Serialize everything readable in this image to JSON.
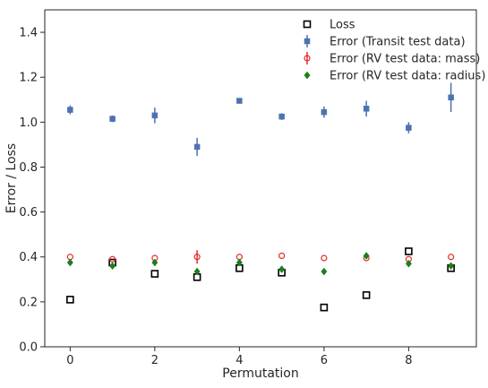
{
  "chart_data": {
    "type": "scatter",
    "xlabel": "Permutation",
    "ylabel": "Error / Loss",
    "xlim": [
      -0.6,
      9.6
    ],
    "ylim": [
      0.0,
      1.5
    ],
    "x_ticks": [
      0,
      2,
      4,
      6,
      8
    ],
    "y_ticks": [
      0.0,
      0.2,
      0.4,
      0.6,
      0.8,
      1.0,
      1.2,
      1.4
    ],
    "x_tick_labels": [
      "0",
      "2",
      "4",
      "6",
      "8"
    ],
    "y_tick_labels": [
      "0.0",
      "0.2",
      "0.4",
      "0.6",
      "0.8",
      "1.0",
      "1.2",
      "1.4"
    ],
    "grid": false,
    "legend_position": "top-right",
    "series": [
      {
        "name": "Loss",
        "marker": "open-square",
        "color": "#000000",
        "x": [
          0,
          1,
          2,
          3,
          4,
          5,
          6,
          7,
          8,
          9
        ],
        "y": [
          0.21,
          0.375,
          0.325,
          0.31,
          0.35,
          0.33,
          0.175,
          0.23,
          0.425,
          0.35
        ],
        "err": [
          0,
          0,
          0,
          0,
          0,
          0,
          0,
          0,
          0,
          0
        ]
      },
      {
        "name": "Error (Transit test data)",
        "marker": "filled-square",
        "color": "#4c72b0",
        "x": [
          0,
          1,
          2,
          3,
          4,
          5,
          6,
          7,
          8,
          9
        ],
        "y": [
          1.055,
          1.015,
          1.03,
          0.89,
          1.095,
          1.025,
          1.045,
          1.06,
          0.975,
          1.11
        ],
        "err": [
          0.02,
          0.015,
          0.035,
          0.04,
          0.01,
          0.015,
          0.025,
          0.035,
          0.025,
          0.065
        ]
      },
      {
        "name": "Error (RV test data: mass)",
        "marker": "open-circle",
        "color": "#e32b2b",
        "x": [
          0,
          1,
          2,
          3,
          4,
          5,
          6,
          7,
          8,
          9
        ],
        "y": [
          0.4,
          0.39,
          0.395,
          0.4,
          0.4,
          0.405,
          0.395,
          0.395,
          0.39,
          0.4
        ],
        "err": [
          0,
          0,
          0,
          0.03,
          0,
          0,
          0,
          0,
          0,
          0
        ]
      },
      {
        "name": "Error (RV test data: radius)",
        "marker": "filled-diamond",
        "color": "#1a7f1a",
        "x": [
          0,
          1,
          2,
          3,
          4,
          5,
          6,
          7,
          8,
          9
        ],
        "y": [
          0.375,
          0.36,
          0.375,
          0.335,
          0.375,
          0.345,
          0.335,
          0.405,
          0.37,
          0.36
        ],
        "err": [
          0,
          0,
          0,
          0,
          0,
          0,
          0,
          0,
          0,
          0
        ]
      }
    ]
  }
}
